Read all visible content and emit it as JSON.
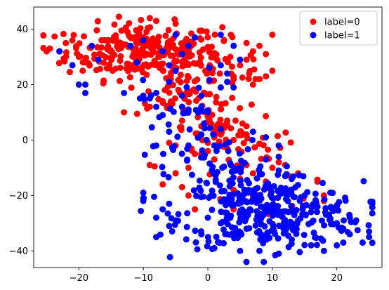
{
  "chart_data": {
    "type": "scatter",
    "title": "",
    "xlabel": "",
    "ylabel": "",
    "xlim": [
      -27,
      27
    ],
    "ylim": [
      -46,
      48
    ],
    "xticks": [
      -20,
      -10,
      0,
      10,
      20
    ],
    "yticks": [
      -40,
      -20,
      0,
      20,
      40
    ],
    "grid": false,
    "legend_position": "top-right",
    "series": [
      {
        "name": "label=0",
        "color": "#ff0000",
        "clusters": [
          {
            "center": [
              -10,
              32
            ],
            "spread": [
              6,
              5
            ],
            "count": 260
          },
          {
            "center": [
              0,
              24
            ],
            "spread": [
              4,
              6
            ],
            "count": 60
          },
          {
            "center": [
              -5,
              15
            ],
            "spread": [
              3,
              3
            ],
            "count": 30
          },
          {
            "center": [
              2,
              5
            ],
            "spread": [
              3,
              5
            ],
            "count": 40
          },
          {
            "center": [
              5,
              -5
            ],
            "spread": [
              5,
              5
            ],
            "count": 30
          },
          {
            "center": [
              8,
              -20
            ],
            "spread": [
              6,
              4
            ],
            "count": 10
          }
        ],
        "points": [
          [
            -25,
            32
          ],
          [
            -24.5,
            33
          ],
          [
            -23,
            32
          ],
          [
            -20,
            30
          ],
          [
            -22,
            35
          ],
          [
            -21,
            36
          ],
          [
            -13,
            10
          ],
          [
            -9,
            12
          ],
          [
            -7,
            14
          ],
          [
            -9,
            44
          ],
          [
            -8,
            43
          ],
          [
            -5,
            42
          ],
          [
            10,
            38
          ],
          [
            8,
            34
          ],
          [
            9,
            31
          ],
          [
            7,
            32
          ],
          [
            6,
            29
          ],
          [
            9,
            23
          ],
          [
            10,
            25
          ],
          [
            7,
            20
          ],
          [
            8,
            22
          ],
          [
            4,
            22
          ],
          [
            5,
            27
          ],
          [
            6,
            35
          ],
          [
            6,
            5
          ],
          [
            6,
            2
          ],
          [
            3,
            7
          ],
          [
            2,
            2
          ],
          [
            1,
            1
          ],
          [
            -2,
            -5
          ],
          [
            -3,
            -10
          ],
          [
            -4,
            -17
          ],
          [
            -3,
            -20
          ],
          [
            -7,
            -16
          ],
          [
            -5,
            -12
          ],
          [
            -1,
            -5
          ],
          [
            0,
            -4
          ],
          [
            4,
            -18
          ],
          [
            6,
            -19
          ],
          [
            7,
            -20
          ],
          [
            6,
            -27
          ],
          [
            4,
            -25
          ],
          [
            -2,
            -25
          ],
          [
            8,
            -21
          ],
          [
            9,
            -15
          ],
          [
            10,
            -10
          ],
          [
            17,
            -15
          ],
          [
            18,
            -20
          ],
          [
            18,
            -22
          ],
          [
            20,
            -24
          ],
          [
            -9,
            -9
          ],
          [
            -5,
            -2
          ],
          [
            -6,
            -1
          ],
          [
            -4,
            7
          ],
          [
            -1,
            5
          ],
          [
            0,
            -1
          ],
          [
            3,
            -3
          ],
          [
            1,
            -7
          ],
          [
            4,
            0
          ],
          [
            6,
            -9
          ],
          [
            5,
            -14
          ],
          [
            7,
            -12
          ],
          [
            11,
            -8
          ],
          [
            12,
            -9
          ],
          [
            14,
            -12
          ],
          [
            1,
            -12
          ]
        ]
      },
      {
        "name": "label=1",
        "color": "#0000ff",
        "clusters": [
          {
            "center": [
              10,
              -27
            ],
            "spread": [
              7,
              6
            ],
            "count": 300
          },
          {
            "center": [
              3,
              -15
            ],
            "spread": [
              5,
              5
            ],
            "count": 60
          },
          {
            "center": [
              -2,
              -5
            ],
            "spread": [
              4,
              5
            ],
            "count": 30
          },
          {
            "center": [
              -4,
              12
            ],
            "spread": [
              3,
              7
            ],
            "count": 25
          }
        ],
        "points": [
          [
            -23,
            32
          ],
          [
            -18,
            34
          ],
          [
            -17,
            29
          ],
          [
            -21,
            27
          ],
          [
            -20,
            20
          ],
          [
            -19,
            20
          ],
          [
            -19,
            17
          ],
          [
            -12,
            34
          ],
          [
            -10,
            36
          ],
          [
            -11,
            28
          ],
          [
            -7,
            32
          ],
          [
            -6,
            27
          ],
          [
            -4,
            31
          ],
          [
            -3,
            34
          ],
          [
            -5,
            38
          ],
          [
            -2,
            37
          ],
          [
            2,
            38
          ],
          [
            4,
            34
          ],
          [
            5,
            29
          ],
          [
            2,
            27
          ],
          [
            3,
            24
          ],
          [
            3,
            21
          ],
          [
            4,
            19
          ],
          [
            -5,
            25
          ],
          [
            -6,
            21
          ],
          [
            -8,
            17
          ],
          [
            -9,
            15
          ],
          [
            -7,
            9
          ],
          [
            -8,
            12
          ],
          [
            -4,
            16
          ],
          [
            -4,
            12
          ],
          [
            -3,
            11
          ],
          [
            -1,
            12
          ],
          [
            0,
            10
          ],
          [
            -1,
            16
          ],
          [
            -10,
            16
          ],
          [
            -13,
            17
          ],
          [
            2,
            19
          ],
          [
            -6,
            3
          ],
          [
            -8,
            -2
          ],
          [
            -3,
            -2
          ],
          [
            -1,
            2
          ],
          [
            1,
            -2
          ],
          [
            2,
            4
          ],
          [
            7,
            3
          ],
          [
            9,
            1
          ],
          [
            11,
            -2
          ],
          [
            -10,
            -19
          ],
          [
            -10,
            -21
          ],
          [
            -10,
            -22
          ],
          [
            -6,
            -23
          ],
          [
            -7,
            -25
          ],
          [
            -8,
            -28
          ],
          [
            -6,
            -31
          ],
          [
            -8,
            -35
          ],
          [
            -5,
            -29
          ],
          [
            25,
            -33
          ],
          [
            25,
            -35
          ],
          [
            24,
            -37
          ],
          [
            23,
            -29
          ],
          [
            22,
            -34
          ],
          [
            21,
            -37
          ],
          [
            20,
            -38
          ],
          [
            18,
            -40
          ],
          [
            11,
            -41
          ],
          [
            8,
            -40
          ],
          [
            5,
            -40
          ],
          [
            1,
            -39
          ],
          [
            -1,
            -34
          ],
          [
            13,
            -14
          ],
          [
            12,
            -13
          ],
          [
            15,
            -20
          ],
          [
            19,
            -19
          ],
          [
            17,
            -24
          ],
          [
            16,
            -26
          ],
          [
            14,
            -29
          ],
          [
            20,
            -30
          ],
          [
            22,
            -28
          ],
          [
            21,
            -32
          ],
          [
            5,
            -10
          ],
          [
            9,
            -7
          ],
          [
            11,
            -11
          ],
          [
            6,
            -32
          ],
          [
            3,
            -34
          ],
          [
            2,
            -30
          ],
          [
            0,
            -28
          ]
        ]
      }
    ]
  }
}
